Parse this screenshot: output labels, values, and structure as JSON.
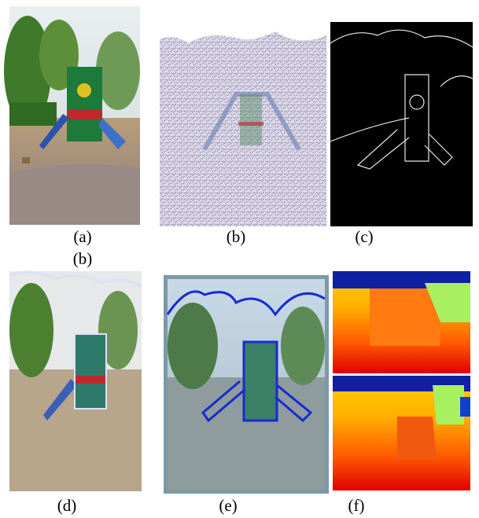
{
  "panels": [
    {
      "label": "(a)"
    },
    {
      "label": "(b)"
    },
    {
      "label": "(c)"
    },
    {
      "label": "(d)"
    },
    {
      "label": "(e)"
    },
    {
      "label": "(f)"
    }
  ],
  "stray_label": "(b)"
}
